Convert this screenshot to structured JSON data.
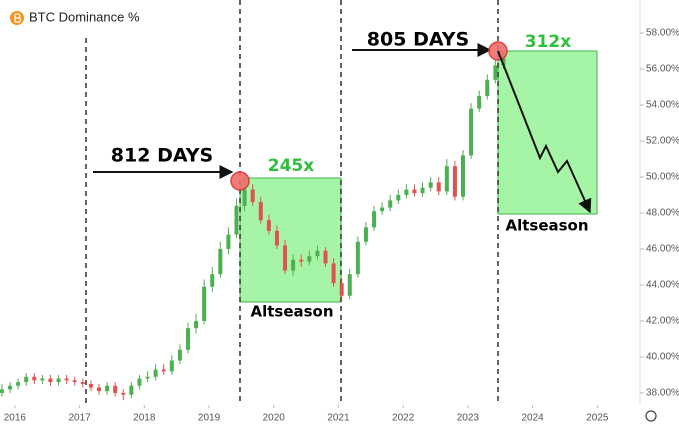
{
  "chart_data": {
    "type": "candlestick",
    "title": "BTC Dominance %",
    "x": [
      2015.8,
      2015.925,
      2016.05,
      2016.175,
      2016.3,
      2016.425,
      2016.55,
      2016.675,
      2016.8,
      2016.925,
      2017.05,
      2017.175,
      2017.3,
      2017.425,
      2017.55,
      2017.675,
      2017.8,
      2017.925,
      2018.05,
      2018.175,
      2018.3,
      2018.425,
      2018.55,
      2018.675,
      2018.8,
      2018.925,
      2019.05,
      2019.175,
      2019.3,
      2019.425,
      2019.55,
      2019.675,
      2019.8,
      2019.925,
      2020.05,
      2020.175,
      2020.3,
      2020.425,
      2020.55,
      2020.675,
      2020.8,
      2020.925,
      2021.05,
      2021.175,
      2021.3,
      2021.425,
      2021.55,
      2021.675,
      2021.8,
      2021.925,
      2022.05,
      2022.175,
      2022.3,
      2022.425,
      2022.55,
      2022.675,
      2022.8,
      2022.925,
      2023.05,
      2023.175,
      2023.3,
      2023.425,
      2023.55
    ],
    "open": [
      38.0,
      38.2,
      38.4,
      38.6,
      38.9,
      38.7,
      38.8,
      38.6,
      38.8,
      38.7,
      38.6,
      38.5,
      38.3,
      38.1,
      38.4,
      38.0,
      37.9,
      38.4,
      38.8,
      38.9,
      39.3,
      39.2,
      39.8,
      40.4,
      41.6,
      42.0,
      43.9,
      44.6,
      46.0,
      46.8,
      48.4,
      49.3,
      48.6,
      47.6,
      47.0,
      46.2,
      44.8,
      45.4,
      45.3,
      45.6,
      45.9,
      45.2,
      44.1,
      43.4,
      44.6,
      46.4,
      47.2,
      48.1,
      48.3,
      48.7,
      49.0,
      49.3,
      49.1,
      49.4,
      49.7,
      49.2,
      50.6,
      48.9,
      51.2,
      53.8,
      54.5,
      55.4,
      56.2
    ],
    "high": [
      38.5,
      38.6,
      38.8,
      39.1,
      39.1,
      39.0,
      39.0,
      39.0,
      39.0,
      38.9,
      38.8,
      38.7,
      38.5,
      38.6,
      38.6,
      38.2,
      38.6,
      39.0,
      39.2,
      39.6,
      39.6,
      40.1,
      40.7,
      41.9,
      42.4,
      44.3,
      45.0,
      46.4,
      47.2,
      48.8,
      50.2,
      49.6,
      48.9,
      47.9,
      47.3,
      46.5,
      45.7,
      45.7,
      45.9,
      46.2,
      46.1,
      45.5,
      44.4,
      44.9,
      46.7,
      47.5,
      48.4,
      48.6,
      49.0,
      49.3,
      49.6,
      49.6,
      49.7,
      50.0,
      50.0,
      51.0,
      50.9,
      51.5,
      54.1,
      54.8,
      55.7,
      56.5,
      56.9
    ],
    "low": [
      37.8,
      38.0,
      38.2,
      38.4,
      38.5,
      38.5,
      38.4,
      38.4,
      38.5,
      38.4,
      38.3,
      38.1,
      37.9,
      37.9,
      37.8,
      37.6,
      37.7,
      38.2,
      38.6,
      38.7,
      39.0,
      39.0,
      39.6,
      40.2,
      41.3,
      41.8,
      43.6,
      44.4,
      45.7,
      46.6,
      48.1,
      48.4,
      47.4,
      46.8,
      46.0,
      44.6,
      44.5,
      45.0,
      45.1,
      45.4,
      45.0,
      43.9,
      43.1,
      43.2,
      44.4,
      46.2,
      47.0,
      47.9,
      48.1,
      48.5,
      48.8,
      48.9,
      48.9,
      49.2,
      49.0,
      49.0,
      48.7,
      48.7,
      51.0,
      53.6,
      54.3,
      55.2,
      56.0
    ],
    "close": [
      38.2,
      38.4,
      38.6,
      38.9,
      38.7,
      38.8,
      38.6,
      38.8,
      38.7,
      38.6,
      38.5,
      38.3,
      38.1,
      38.4,
      38.0,
      37.9,
      38.4,
      38.8,
      38.9,
      39.3,
      39.2,
      39.8,
      40.4,
      41.6,
      42.0,
      43.9,
      44.6,
      46.0,
      46.8,
      48.4,
      49.3,
      48.6,
      47.6,
      47.0,
      46.2,
      44.8,
      45.4,
      45.3,
      45.6,
      45.9,
      45.2,
      44.1,
      43.4,
      44.6,
      46.4,
      47.2,
      48.1,
      48.3,
      48.7,
      49.0,
      49.3,
      49.1,
      49.4,
      49.7,
      49.2,
      50.6,
      48.9,
      51.2,
      53.8,
      54.5,
      55.4,
      56.2,
      56.6
    ],
    "up_color": "#4caf50",
    "down_color": "#e0524f",
    "xlim": [
      2015.77,
      2025.66
    ],
    "xticks": [
      2016,
      2017,
      2018,
      2019,
      2020,
      2021,
      2022,
      2023,
      2024,
      2025
    ],
    "ylim": [
      37.33,
      59
    ],
    "yticks": [
      {
        "value": 38,
        "label": "38.00%"
      },
      {
        "value": 40,
        "label": "40.00%"
      },
      {
        "value": 42,
        "label": "42.00%"
      },
      {
        "value": 44,
        "label": "44.00%"
      },
      {
        "value": 46,
        "label": "46.00%"
      },
      {
        "value": 48,
        "label": "48.00%"
      },
      {
        "value": 50,
        "label": "50.00%"
      },
      {
        "value": 52,
        "label": "52.00%"
      },
      {
        "value": 54,
        "label": "54.00%"
      },
      {
        "value": 56,
        "label": "56.00%"
      },
      {
        "value": 58,
        "label": "58.00%"
      }
    ],
    "annotations": [
      "812 DAYS",
      "245x",
      "Altseason",
      "805 DAYS",
      "312x",
      "Altseason"
    ]
  }
}
